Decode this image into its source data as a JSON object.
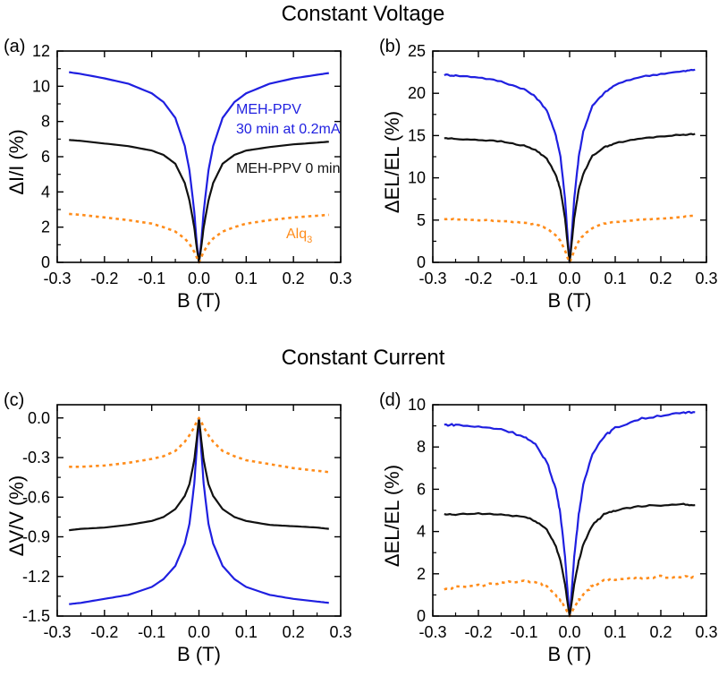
{
  "section_titles": {
    "top": "Constant Voltage",
    "bottom": "Constant Current"
  },
  "colors": {
    "blue": "#1f1fe0",
    "black": "#111111",
    "orange": "#ff8c1a"
  },
  "chart_data": [
    {
      "id": "a",
      "type": "line",
      "panel_label": "(a)",
      "xlabel": "B (T)",
      "ylabel": "ΔI/I (%)",
      "xlim": [
        -0.3,
        0.3
      ],
      "ylim": [
        0,
        12
      ],
      "xticks": [
        -0.3,
        -0.2,
        -0.1,
        0.0,
        0.1,
        0.2,
        0.3
      ],
      "xtick_labels": [
        "-0.3",
        "-0.2",
        "-0.1",
        "0.0",
        "0.1",
        "0.2",
        "0.3"
      ],
      "yticks": [
        0,
        2,
        4,
        6,
        8,
        10,
        12
      ],
      "ytick_labels": [
        "0",
        "2",
        "4",
        "6",
        "8",
        "10",
        "12"
      ],
      "series": [
        {
          "name": "MEH-PPV 30 min at 0.2mA",
          "color": "#1f1fe0",
          "style": "solid",
          "noise": 0.0,
          "x": [
            -0.275,
            -0.25,
            -0.2,
            -0.15,
            -0.1,
            -0.075,
            -0.05,
            -0.03,
            -0.02,
            -0.01,
            -0.005,
            0,
            0.005,
            0.01,
            0.02,
            0.03,
            0.05,
            0.075,
            0.1,
            0.15,
            0.2,
            0.25,
            0.275
          ],
          "y": [
            10.8,
            10.7,
            10.45,
            10.15,
            9.6,
            9.1,
            8.2,
            6.6,
            5.2,
            2.9,
            1.2,
            0.0,
            1.2,
            2.9,
            5.2,
            6.6,
            8.2,
            9.1,
            9.6,
            10.15,
            10.45,
            10.65,
            10.75
          ]
        },
        {
          "name": "MEH-PPV 0 min",
          "color": "#111111",
          "style": "solid",
          "noise": 0.0,
          "x": [
            -0.275,
            -0.25,
            -0.2,
            -0.15,
            -0.1,
            -0.075,
            -0.05,
            -0.03,
            -0.02,
            -0.01,
            -0.005,
            0,
            0.005,
            0.01,
            0.02,
            0.03,
            0.05,
            0.075,
            0.1,
            0.15,
            0.2,
            0.25,
            0.275
          ],
          "y": [
            6.95,
            6.9,
            6.75,
            6.6,
            6.35,
            6.1,
            5.6,
            4.5,
            3.5,
            2.0,
            0.9,
            0.0,
            0.9,
            2.0,
            3.5,
            4.5,
            5.6,
            6.1,
            6.35,
            6.55,
            6.7,
            6.8,
            6.85
          ]
        },
        {
          "name": "Alq3",
          "color": "#ff8c1a",
          "style": "dotted",
          "noise": 0.0,
          "x": [
            -0.275,
            -0.25,
            -0.2,
            -0.15,
            -0.1,
            -0.075,
            -0.05,
            -0.03,
            -0.02,
            -0.01,
            -0.005,
            0,
            0.005,
            0.01,
            0.02,
            0.03,
            0.05,
            0.075,
            0.1,
            0.15,
            0.2,
            0.25,
            0.275
          ],
          "y": [
            2.75,
            2.7,
            2.55,
            2.4,
            2.2,
            2.0,
            1.75,
            1.35,
            1.05,
            0.6,
            0.3,
            0.0,
            0.3,
            0.6,
            1.05,
            1.35,
            1.75,
            2.0,
            2.2,
            2.4,
            2.55,
            2.65,
            2.7
          ]
        }
      ],
      "annotations": [
        {
          "key": "blue1",
          "text": "MEH-PPV",
          "color": "#1f1fe0"
        },
        {
          "key": "blue2",
          "text": "30 min at 0.2mA",
          "color": "#1f1fe0"
        },
        {
          "key": "black",
          "text": "MEH-PPV 0 min",
          "color": "#111111"
        },
        {
          "key": "alq",
          "text": "Alq",
          "sub": "3",
          "color": "#ff8c1a"
        }
      ]
    },
    {
      "id": "b",
      "type": "line",
      "panel_label": "(b)",
      "xlabel": "B (T)",
      "ylabel": "ΔEL/EL (%)",
      "xlim": [
        -0.3,
        0.3
      ],
      "ylim": [
        0,
        25
      ],
      "xticks": [
        -0.3,
        -0.2,
        -0.1,
        0.0,
        0.1,
        0.2,
        0.3
      ],
      "xtick_labels": [
        "-0.3",
        "-0.2",
        "-0.1",
        "0.0",
        "0.1",
        "0.2",
        "0.3"
      ],
      "yticks": [
        0,
        5,
        10,
        15,
        20,
        25
      ],
      "ytick_labels": [
        "0",
        "5",
        "10",
        "15",
        "20",
        "25"
      ],
      "series": [
        {
          "name": "MEH-PPV 30 min at 0.2mA",
          "color": "#1f1fe0",
          "style": "solid",
          "noise": 0.08,
          "x": [
            -0.275,
            -0.25,
            -0.2,
            -0.15,
            -0.1,
            -0.075,
            -0.05,
            -0.03,
            -0.02,
            -0.01,
            -0.005,
            0,
            0.005,
            0.01,
            0.02,
            0.03,
            0.05,
            0.075,
            0.1,
            0.15,
            0.2,
            0.25,
            0.275
          ],
          "y": [
            22.2,
            22.1,
            21.9,
            21.4,
            20.5,
            19.6,
            18.0,
            15.0,
            12.5,
            7.5,
            3.5,
            0.0,
            3.5,
            7.5,
            12.5,
            15.5,
            18.5,
            20.0,
            21.0,
            21.9,
            22.3,
            22.6,
            22.8
          ]
        },
        {
          "name": "MEH-PPV 0 min",
          "color": "#111111",
          "style": "solid",
          "noise": 0.06,
          "x": [
            -0.275,
            -0.25,
            -0.2,
            -0.15,
            -0.1,
            -0.075,
            -0.05,
            -0.03,
            -0.02,
            -0.01,
            -0.005,
            0,
            0.005,
            0.01,
            0.02,
            0.03,
            0.05,
            0.075,
            0.1,
            0.15,
            0.2,
            0.25,
            0.275
          ],
          "y": [
            14.7,
            14.6,
            14.5,
            14.3,
            13.8,
            13.3,
            12.3,
            10.3,
            8.6,
            5.2,
            2.5,
            0.0,
            2.5,
            5.2,
            8.6,
            10.5,
            12.6,
            13.6,
            14.1,
            14.6,
            14.9,
            15.1,
            15.2
          ]
        },
        {
          "name": "Alq3",
          "color": "#ff8c1a",
          "style": "dotted",
          "noise": 0.05,
          "x": [
            -0.275,
            -0.25,
            -0.2,
            -0.15,
            -0.1,
            -0.075,
            -0.05,
            -0.03,
            -0.02,
            -0.01,
            -0.005,
            0,
            0.005,
            0.01,
            0.02,
            0.03,
            0.05,
            0.075,
            0.1,
            0.15,
            0.2,
            0.25,
            0.275
          ],
          "y": [
            5.1,
            5.1,
            5.0,
            4.9,
            4.7,
            4.5,
            4.0,
            3.2,
            2.5,
            1.4,
            0.6,
            0.0,
            0.6,
            1.4,
            2.5,
            3.2,
            4.1,
            4.6,
            4.8,
            5.0,
            5.2,
            5.4,
            5.5
          ]
        }
      ]
    },
    {
      "id": "c",
      "type": "line",
      "panel_label": "(c)",
      "xlabel": "B (T)",
      "ylabel": "ΔV/V (%)",
      "xlim": [
        -0.3,
        0.3
      ],
      "ylim": [
        -1.5,
        0.1
      ],
      "xticks": [
        -0.3,
        -0.2,
        -0.1,
        0.0,
        0.1,
        0.2,
        0.3
      ],
      "xtick_labels": [
        "-0.3",
        "-0.2",
        "-0.1",
        "0.0",
        "0.1",
        "0.2",
        "0.3"
      ],
      "yticks": [
        0.0,
        -0.3,
        -0.6,
        -0.9,
        -1.2,
        -1.5
      ],
      "ytick_labels": [
        "0.0",
        "-0.3",
        "-0.6",
        "-0.9",
        "-1.2",
        "-1.5"
      ],
      "series": [
        {
          "name": "MEH-PPV 30 min at 0.2mA",
          "color": "#1f1fe0",
          "style": "solid",
          "noise": 0.0,
          "x": [
            -0.275,
            -0.25,
            -0.2,
            -0.15,
            -0.1,
            -0.075,
            -0.05,
            -0.03,
            -0.02,
            -0.01,
            -0.005,
            0,
            0.005,
            0.01,
            0.02,
            0.03,
            0.05,
            0.075,
            0.1,
            0.15,
            0.2,
            0.25,
            0.275
          ],
          "y": [
            -1.41,
            -1.4,
            -1.37,
            -1.34,
            -1.28,
            -1.22,
            -1.12,
            -0.95,
            -0.8,
            -0.5,
            -0.25,
            0.0,
            -0.25,
            -0.5,
            -0.8,
            -0.95,
            -1.12,
            -1.22,
            -1.28,
            -1.34,
            -1.37,
            -1.39,
            -1.4
          ]
        },
        {
          "name": "MEH-PPV 0 min",
          "color": "#111111",
          "style": "solid",
          "noise": 0.0,
          "x": [
            -0.275,
            -0.25,
            -0.2,
            -0.15,
            -0.1,
            -0.075,
            -0.05,
            -0.03,
            -0.02,
            -0.01,
            -0.005,
            0,
            0.005,
            0.01,
            0.02,
            0.03,
            0.05,
            0.075,
            0.1,
            0.15,
            0.2,
            0.25,
            0.275
          ],
          "y": [
            -0.85,
            -0.84,
            -0.83,
            -0.81,
            -0.78,
            -0.75,
            -0.69,
            -0.59,
            -0.5,
            -0.32,
            -0.17,
            0.0,
            -0.17,
            -0.32,
            -0.5,
            -0.59,
            -0.69,
            -0.75,
            -0.78,
            -0.81,
            -0.82,
            -0.83,
            -0.84
          ]
        },
        {
          "name": "Alq3",
          "color": "#ff8c1a",
          "style": "dotted",
          "noise": 0.0,
          "x": [
            -0.275,
            -0.25,
            -0.2,
            -0.15,
            -0.1,
            -0.075,
            -0.05,
            -0.03,
            -0.02,
            -0.01,
            -0.005,
            0,
            0.005,
            0.01,
            0.02,
            0.03,
            0.05,
            0.075,
            0.1,
            0.15,
            0.2,
            0.25,
            0.275
          ],
          "y": [
            -0.37,
            -0.37,
            -0.36,
            -0.34,
            -0.31,
            -0.29,
            -0.25,
            -0.18,
            -0.13,
            -0.07,
            -0.03,
            0.0,
            -0.03,
            -0.07,
            -0.13,
            -0.18,
            -0.25,
            -0.29,
            -0.32,
            -0.35,
            -0.38,
            -0.4,
            -0.41
          ]
        }
      ]
    },
    {
      "id": "d",
      "type": "line",
      "panel_label": "(d)",
      "xlabel": "B (T)",
      "ylabel": "ΔEL/EL (%)",
      "xlim": [
        -0.3,
        0.3
      ],
      "ylim": [
        0,
        10
      ],
      "xticks": [
        -0.3,
        -0.2,
        -0.1,
        0.0,
        0.1,
        0.2,
        0.3
      ],
      "xtick_labels": [
        "-0.3",
        "-0.2",
        "-0.1",
        "0.0",
        "0.1",
        "0.2",
        "0.3"
      ],
      "yticks": [
        0,
        2,
        4,
        6,
        8,
        10
      ],
      "ytick_labels": [
        "0",
        "2",
        "4",
        "6",
        "8",
        "10"
      ],
      "series": [
        {
          "name": "MEH-PPV 30 min at 0.2mA",
          "color": "#1f1fe0",
          "style": "solid",
          "noise": 0.05,
          "x": [
            -0.275,
            -0.25,
            -0.2,
            -0.15,
            -0.1,
            -0.075,
            -0.05,
            -0.03,
            -0.02,
            -0.01,
            -0.005,
            0,
            0.005,
            0.01,
            0.02,
            0.03,
            0.05,
            0.075,
            0.1,
            0.15,
            0.2,
            0.25,
            0.275
          ],
          "y": [
            9.05,
            9.05,
            8.95,
            8.85,
            8.5,
            8.1,
            7.3,
            6.0,
            4.8,
            2.8,
            1.3,
            0.0,
            1.3,
            2.8,
            4.8,
            6.2,
            7.7,
            8.5,
            8.9,
            9.3,
            9.5,
            9.6,
            9.65
          ]
        },
        {
          "name": "MEH-PPV 0 min",
          "color": "#111111",
          "style": "solid",
          "noise": 0.035,
          "x": [
            -0.275,
            -0.25,
            -0.2,
            -0.15,
            -0.1,
            -0.075,
            -0.05,
            -0.03,
            -0.02,
            -0.01,
            -0.005,
            0,
            0.005,
            0.01,
            0.02,
            0.03,
            0.05,
            0.075,
            0.1,
            0.15,
            0.2,
            0.25,
            0.275
          ],
          "y": [
            4.8,
            4.8,
            4.85,
            4.8,
            4.7,
            4.5,
            4.1,
            3.3,
            2.6,
            1.5,
            0.7,
            0.0,
            0.7,
            1.5,
            2.6,
            3.4,
            4.3,
            4.8,
            5.0,
            5.2,
            5.25,
            5.3,
            5.25
          ]
        },
        {
          "name": "Alq3",
          "color": "#ff8c1a",
          "style": "dotted",
          "noise": 0.06,
          "x": [
            -0.275,
            -0.25,
            -0.2,
            -0.15,
            -0.1,
            -0.075,
            -0.05,
            -0.03,
            -0.02,
            -0.01,
            -0.005,
            0,
            0.005,
            0.01,
            0.02,
            0.03,
            0.05,
            0.075,
            0.1,
            0.15,
            0.2,
            0.25,
            0.275
          ],
          "y": [
            1.3,
            1.35,
            1.45,
            1.55,
            1.65,
            1.6,
            1.4,
            1.0,
            0.75,
            0.4,
            0.2,
            0.0,
            0.2,
            0.4,
            0.75,
            1.0,
            1.45,
            1.65,
            1.75,
            1.8,
            1.85,
            1.85,
            1.8
          ]
        }
      ]
    }
  ]
}
